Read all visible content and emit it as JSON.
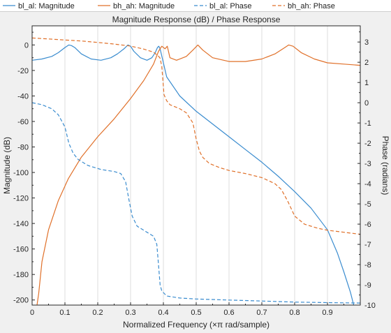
{
  "chart_data": {
    "type": "line",
    "title": "Magnitude Response (dB) / Phase Response",
    "xlabel": "Normalized Frequency (×π rad/sample)",
    "ylabel_left": "Magnitude (dB)",
    "ylabel_right": "Phase (radians)",
    "xlim": [
      0,
      1
    ],
    "ylim_left": [
      -204,
      15
    ],
    "ylim_right": [
      -10,
      3.8
    ],
    "x_ticks": [
      "0",
      "0.1",
      "0.2",
      "0.3",
      "0.4",
      "0.5",
      "0.6",
      "0.7",
      "0.8",
      "0.9"
    ],
    "y_left_ticks": [
      "0",
      "-20",
      "-40",
      "-60",
      "-80",
      "-100",
      "-120",
      "-140",
      "-160",
      "-180",
      "-200"
    ],
    "y_right_ticks": [
      "3",
      "2",
      "1",
      "0",
      "-1",
      "-2",
      "-3",
      "-4",
      "-5",
      "-6",
      "-7",
      "-8",
      "-9",
      "-10"
    ],
    "grid": "vertical",
    "legend_position": "top",
    "series": [
      {
        "name": "bl_al: Magnitude",
        "axis": "left",
        "style": "solid",
        "color": "#3a8ccf",
        "x": [
          0,
          0.03,
          0.06,
          0.08,
          0.1,
          0.112,
          0.12,
          0.13,
          0.15,
          0.18,
          0.21,
          0.24,
          0.26,
          0.28,
          0.292,
          0.3,
          0.31,
          0.33,
          0.35,
          0.365,
          0.375,
          0.382,
          0.386,
          0.39,
          0.41,
          0.45,
          0.5,
          0.55,
          0.6,
          0.65,
          0.7,
          0.75,
          0.8,
          0.85,
          0.9,
          0.93,
          0.95,
          0.97,
          0.98
        ],
        "y": [
          -12,
          -11,
          -9,
          -6,
          -2,
          0,
          -0.5,
          -2,
          -7,
          -11,
          -12,
          -10,
          -7,
          -3,
          0,
          -1,
          -5,
          -10,
          -12,
          -10,
          -6,
          -2,
          -1,
          -3,
          -25,
          -40,
          -52,
          -62,
          -72,
          -82,
          -92,
          -103,
          -115,
          -128,
          -145,
          -163,
          -178,
          -194,
          -204
        ]
      },
      {
        "name": "bh_ah: Magnitude",
        "axis": "left",
        "style": "solid",
        "color": "#e07029",
        "x": [
          0.015,
          0.02,
          0.03,
          0.05,
          0.08,
          0.11,
          0.15,
          0.2,
          0.25,
          0.3,
          0.34,
          0.37,
          0.385,
          0.395,
          0.405,
          0.412,
          0.42,
          0.44,
          0.47,
          0.49,
          0.505,
          0.52,
          0.55,
          0.6,
          0.65,
          0.7,
          0.74,
          0.77,
          0.782,
          0.795,
          0.82,
          0.86,
          0.9,
          0.95,
          1.0
        ],
        "y": [
          -204,
          -195,
          -170,
          -145,
          -122,
          -105,
          -88,
          -72,
          -58,
          -42,
          -28,
          -15,
          -5,
          -1,
          -3,
          -1,
          -10,
          -12,
          -9,
          -4,
          0,
          -4,
          -10,
          -13,
          -13,
          -11,
          -7,
          -2,
          0,
          -1,
          -6,
          -11,
          -14,
          -15,
          -16
        ]
      },
      {
        "name": "bl_al: Phase",
        "axis": "right",
        "style": "dashed",
        "color": "#3a8ccf",
        "x": [
          0,
          0.03,
          0.06,
          0.08,
          0.1,
          0.112,
          0.125,
          0.14,
          0.17,
          0.21,
          0.25,
          0.27,
          0.285,
          0.295,
          0.305,
          0.32,
          0.345,
          0.37,
          0.38,
          0.385,
          0.39,
          0.395,
          0.41,
          0.45,
          0.5,
          0.6,
          0.7,
          0.8,
          0.9,
          1.0
        ],
        "y": [
          0,
          -0.1,
          -0.3,
          -0.6,
          -1.2,
          -2.0,
          -2.5,
          -2.8,
          -3.1,
          -3.3,
          -3.4,
          -3.5,
          -3.9,
          -4.8,
          -5.6,
          -6.1,
          -6.35,
          -6.6,
          -7.0,
          -8.0,
          -9.0,
          -9.3,
          -9.55,
          -9.65,
          -9.7,
          -9.75,
          -9.8,
          -9.85,
          -9.88,
          -9.9
        ]
      },
      {
        "name": "bh_ah: Phase",
        "axis": "right",
        "style": "dashed",
        "color": "#e07029",
        "x": [
          0,
          0.05,
          0.1,
          0.15,
          0.2,
          0.25,
          0.3,
          0.34,
          0.37,
          0.385,
          0.39,
          0.395,
          0.4,
          0.402,
          0.41,
          0.42,
          0.45,
          0.47,
          0.49,
          0.5,
          0.51,
          0.52,
          0.54,
          0.57,
          0.6,
          0.65,
          0.7,
          0.74,
          0.76,
          0.78,
          0.8,
          0.83,
          0.87,
          0.9,
          0.95,
          1.0
        ],
        "y": [
          3.2,
          3.15,
          3.1,
          3.05,
          2.98,
          2.9,
          2.8,
          2.65,
          2.5,
          2.3,
          2.2,
          1.8,
          0.8,
          0.4,
          0.1,
          -0.1,
          -0.3,
          -0.5,
          -1.0,
          -1.8,
          -2.4,
          -2.7,
          -3.0,
          -3.2,
          -3.35,
          -3.5,
          -3.7,
          -4.0,
          -4.3,
          -4.9,
          -5.6,
          -6.0,
          -6.2,
          -6.3,
          -6.4,
          -6.5
        ]
      }
    ]
  }
}
